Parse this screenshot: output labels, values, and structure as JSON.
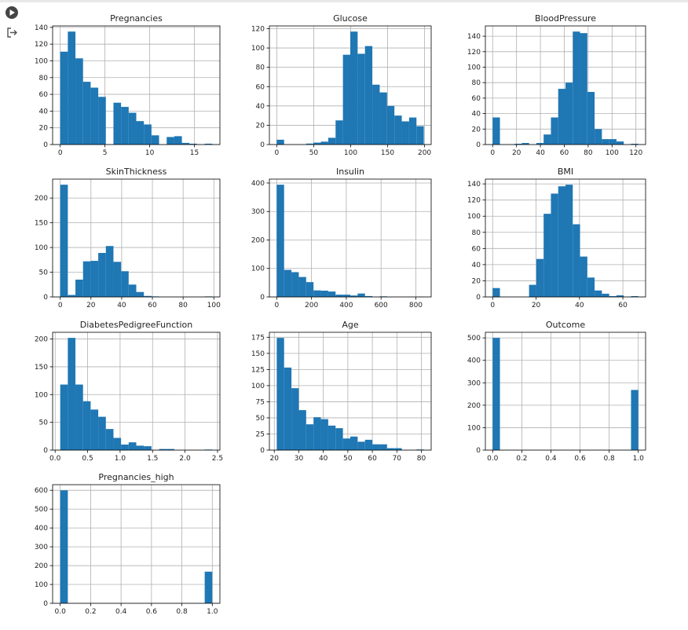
{
  "chart_data": [
    {
      "type": "histogram",
      "title": "Pregnancies",
      "color": "#1f77b4",
      "grid": true,
      "bins": [
        0,
        0.85,
        1.7,
        2.55,
        3.4,
        4.25,
        5.1,
        5.95,
        6.8,
        7.65,
        8.5,
        9.35,
        10.2,
        11.05,
        11.9,
        12.75,
        13.6,
        14.45,
        15.3,
        16.15,
        17
      ],
      "values": [
        111,
        135,
        103,
        75,
        68,
        57,
        0,
        50,
        45,
        38,
        28,
        24,
        11,
        0,
        9,
        10,
        2,
        1,
        0,
        1
      ],
      "xlim": [
        -0.85,
        17.85
      ],
      "ylim": [
        0,
        141.75
      ],
      "xticks": [
        0,
        5,
        10,
        15
      ],
      "yticks": [
        0,
        20,
        40,
        60,
        80,
        100,
        120,
        140
      ]
    },
    {
      "type": "histogram",
      "title": "Glucose",
      "color": "#1f77b4",
      "grid": true,
      "bins": [
        0,
        9.95,
        19.9,
        29.85,
        39.8,
        49.75,
        59.7,
        69.65,
        79.6,
        89.55,
        99.5,
        109.45,
        119.4,
        129.35,
        139.3,
        149.25,
        159.2,
        169.15,
        179.1,
        189.05,
        199
      ],
      "values": [
        5,
        0,
        0,
        0,
        1,
        2,
        3,
        7,
        25,
        93,
        117,
        94,
        102,
        62,
        54,
        40,
        30,
        24,
        28,
        19
      ],
      "xlim": [
        -9.95,
        208.95
      ],
      "ylim": [
        0,
        122.85
      ],
      "xticks": [
        0,
        50,
        100,
        150,
        200
      ],
      "yticks": [
        0,
        20,
        40,
        60,
        80,
        100,
        120
      ]
    },
    {
      "type": "histogram",
      "title": "BloodPressure",
      "color": "#1f77b4",
      "grid": true,
      "bins": [
        0,
        6.1,
        12.2,
        18.3,
        24.4,
        30.5,
        36.6,
        42.7,
        48.8,
        54.9,
        61,
        67.1,
        73.2,
        79.3,
        85.4,
        91.5,
        97.6,
        103.7,
        109.8,
        115.9,
        122
      ],
      "values": [
        35,
        0,
        0,
        1,
        2,
        0,
        2,
        13,
        35,
        72,
        80,
        146,
        144,
        68,
        20,
        7,
        7,
        4,
        0,
        1
      ],
      "xlim": [
        -6.1,
        128.1
      ],
      "ylim": [
        0,
        153.3
      ],
      "xticks": [
        0,
        20,
        40,
        60,
        80,
        100,
        120
      ],
      "yticks": [
        0,
        20,
        40,
        60,
        80,
        100,
        120,
        140
      ]
    },
    {
      "type": "histogram",
      "title": "SkinThickness",
      "color": "#1f77b4",
      "grid": true,
      "bins": [
        0,
        4.95,
        9.9,
        14.85,
        19.8,
        24.75,
        29.7,
        34.65,
        39.6,
        44.55,
        49.5,
        54.45,
        59.4,
        64.35,
        69.3,
        74.25,
        79.2,
        84.15,
        89.1,
        94.05,
        99
      ],
      "values": [
        227,
        4,
        35,
        72,
        73,
        89,
        103,
        71,
        52,
        25,
        10,
        2,
        1,
        0,
        0,
        0,
        0,
        0,
        0,
        1
      ],
      "xlim": [
        -4.95,
        103.95
      ],
      "ylim": [
        0,
        238.35
      ],
      "xticks": [
        0,
        20,
        40,
        60,
        80,
        100
      ],
      "yticks": [
        0,
        50,
        100,
        150,
        200
      ]
    },
    {
      "type": "histogram",
      "title": "Insulin",
      "color": "#1f77b4",
      "grid": true,
      "bins": [
        0,
        42.3,
        84.6,
        126.9,
        169.2,
        211.5,
        253.8,
        296.1,
        338.4,
        380.7,
        423,
        465.3,
        507.6,
        549.9,
        592.2,
        634.5,
        676.8,
        719.1,
        761.4,
        803.7,
        846
      ],
      "values": [
        394,
        95,
        87,
        70,
        52,
        23,
        22,
        19,
        8,
        8,
        5,
        12,
        3,
        0,
        2,
        0,
        0,
        0,
        0,
        1
      ],
      "xlim": [
        -42.3,
        888.3
      ],
      "ylim": [
        0,
        413.7
      ],
      "xticks": [
        0,
        200,
        400,
        600,
        800
      ],
      "yticks": [
        0,
        100,
        200,
        300,
        400
      ]
    },
    {
      "type": "histogram",
      "title": "BMI",
      "color": "#1f77b4",
      "grid": true,
      "bins": [
        0,
        3.355,
        6.71,
        10.065,
        13.42,
        16.775,
        20.13,
        23.485,
        26.84,
        30.195,
        33.55,
        36.905,
        40.26,
        43.615,
        46.97,
        50.325,
        53.68,
        57.035,
        60.39,
        63.745,
        67.1
      ],
      "values": [
        11,
        0,
        0,
        0,
        0,
        15,
        47,
        103,
        128,
        137,
        139,
        90,
        50,
        24,
        8,
        4,
        1,
        2,
        0,
        1
      ],
      "xlim": [
        -3.355,
        70.455
      ],
      "ylim": [
        0,
        145.95
      ],
      "xticks": [
        0,
        20,
        40,
        60
      ],
      "yticks": [
        0,
        20,
        40,
        60,
        80,
        100,
        120,
        140
      ]
    },
    {
      "type": "histogram",
      "title": "DiabetesPedigreeFunction",
      "color": "#1f77b4",
      "grid": true,
      "bins": [
        0.078,
        0.1951,
        0.3122,
        0.4293,
        0.5464,
        0.6635,
        0.7806,
        0.8977,
        1.0148,
        1.1319,
        1.249,
        1.3661,
        1.4832,
        1.6003,
        1.7174,
        1.8345,
        1.9516,
        2.0687,
        2.1858,
        2.3029,
        2.42
      ],
      "values": [
        118,
        202,
        118,
        88,
        73,
        60,
        38,
        22,
        10,
        14,
        8,
        7,
        0,
        2,
        2,
        0,
        0,
        0,
        0,
        1
      ],
      "xlim": [
        -0.039,
        2.537
      ],
      "ylim": [
        0,
        212.1
      ],
      "xticks": [
        {
          "value": 0,
          "label": "0.0"
        },
        0.5,
        {
          "value": 1,
          "label": "1.0"
        },
        1.5,
        {
          "value": 2,
          "label": "2.0"
        },
        2.5
      ],
      "yticks": [
        0,
        50,
        100,
        150,
        200
      ]
    },
    {
      "type": "histogram",
      "title": "Age",
      "color": "#1f77b4",
      "grid": true,
      "bins": [
        21,
        24,
        27,
        30,
        33,
        36,
        39,
        42,
        45,
        48,
        51,
        54,
        57,
        60,
        63,
        66,
        69,
        72,
        75,
        78,
        81
      ],
      "values": [
        174,
        128,
        96,
        62,
        40,
        51,
        48,
        38,
        34,
        18,
        21,
        13,
        16,
        9,
        9,
        3,
        3,
        0,
        0,
        1
      ],
      "xlim": [
        18,
        84
      ],
      "ylim": [
        0,
        182.7
      ],
      "xticks": [
        20,
        30,
        40,
        50,
        60,
        70,
        80
      ],
      "yticks": [
        0,
        25,
        50,
        75,
        100,
        125,
        150,
        175
      ]
    },
    {
      "type": "histogram",
      "title": "Outcome",
      "color": "#1f77b4",
      "grid": true,
      "bins": [
        0,
        0.05,
        0.1,
        0.15,
        0.2,
        0.25,
        0.3,
        0.35,
        0.4,
        0.45,
        0.5,
        0.55,
        0.6,
        0.65,
        0.7,
        0.75,
        0.8,
        0.85,
        0.9,
        0.95,
        1
      ],
      "values": [
        500,
        0,
        0,
        0,
        0,
        0,
        0,
        0,
        0,
        0,
        0,
        0,
        0,
        0,
        0,
        0,
        0,
        0,
        0,
        268
      ],
      "xlim": [
        -0.05,
        1.05
      ],
      "ylim": [
        0,
        525
      ],
      "xticks": [
        {
          "value": 0,
          "label": "0.0"
        },
        0.2,
        0.4,
        0.6,
        0.8,
        {
          "value": 1,
          "label": "1.0"
        }
      ],
      "yticks": [
        0,
        100,
        200,
        300,
        400,
        500
      ]
    },
    {
      "type": "histogram",
      "title": "Pregnancies_high",
      "color": "#1f77b4",
      "grid": true,
      "bins": [
        0,
        0.05,
        0.1,
        0.15,
        0.2,
        0.25,
        0.3,
        0.35,
        0.4,
        0.45,
        0.5,
        0.55,
        0.6,
        0.65,
        0.7,
        0.75,
        0.8,
        0.85,
        0.9,
        0.95,
        1
      ],
      "values": [
        600,
        0,
        0,
        0,
        0,
        0,
        0,
        0,
        0,
        0,
        0,
        0,
        0,
        0,
        0,
        0,
        0,
        0,
        0,
        168
      ],
      "xlim": [
        -0.05,
        1.05
      ],
      "ylim": [
        0,
        630
      ],
      "xticks": [
        {
          "value": 0,
          "label": "0.0"
        },
        0.2,
        0.4,
        0.6,
        0.8,
        {
          "value": 1,
          "label": "1.0"
        }
      ],
      "yticks": [
        0,
        100,
        200,
        300,
        400,
        500,
        600
      ]
    }
  ]
}
